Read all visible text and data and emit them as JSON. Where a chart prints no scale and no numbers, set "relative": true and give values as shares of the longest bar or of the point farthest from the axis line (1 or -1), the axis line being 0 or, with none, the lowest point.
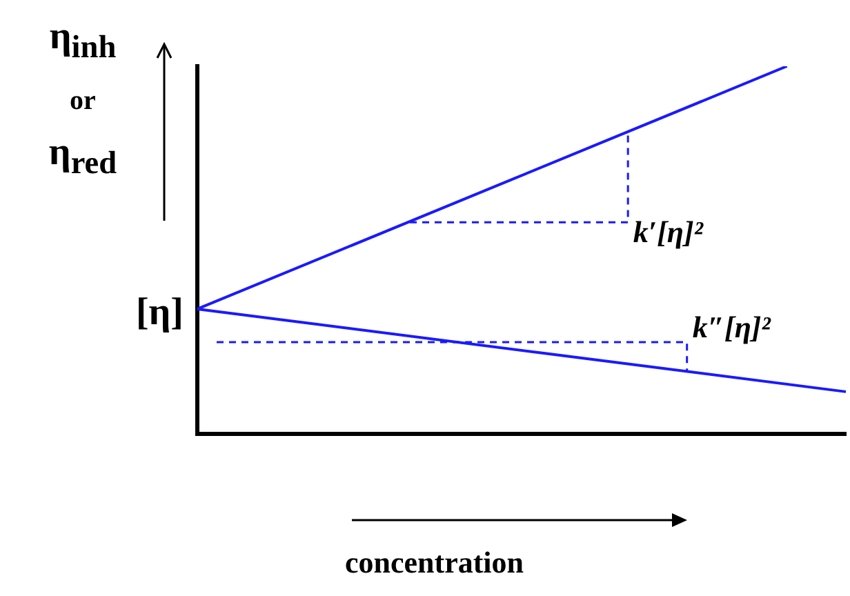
{
  "chart_data": {
    "type": "line",
    "relative": true,
    "legend": false,
    "marker": "none",
    "categories": [
      null,
      null,
      null,
      null,
      null,
      null,
      null,
      null,
      null,
      null,
      null,
      null
    ],
    "xlabel": "concentration",
    "ylabel": "η$_{inh}$ or η$_{red}$",
    "series": [
      {
        "color": "#1a1aff",
        "values": [
          0.34,
          null,
          null,
          null,
          null,
          null,
          null,
          null,
          null,
          null,
          1,
          null
        ]
      },
      {
        "color": "#1a1aff",
        "values": [
          0.34,
          null,
          null,
          null,
          null,
          null,
          null,
          null,
          null,
          null,
          null,
          0.115
        ]
      }
    ],
    "annotations": [
      "[η]",
      "k′[η]²",
      "k″[η]²"
    ]
  }
}
